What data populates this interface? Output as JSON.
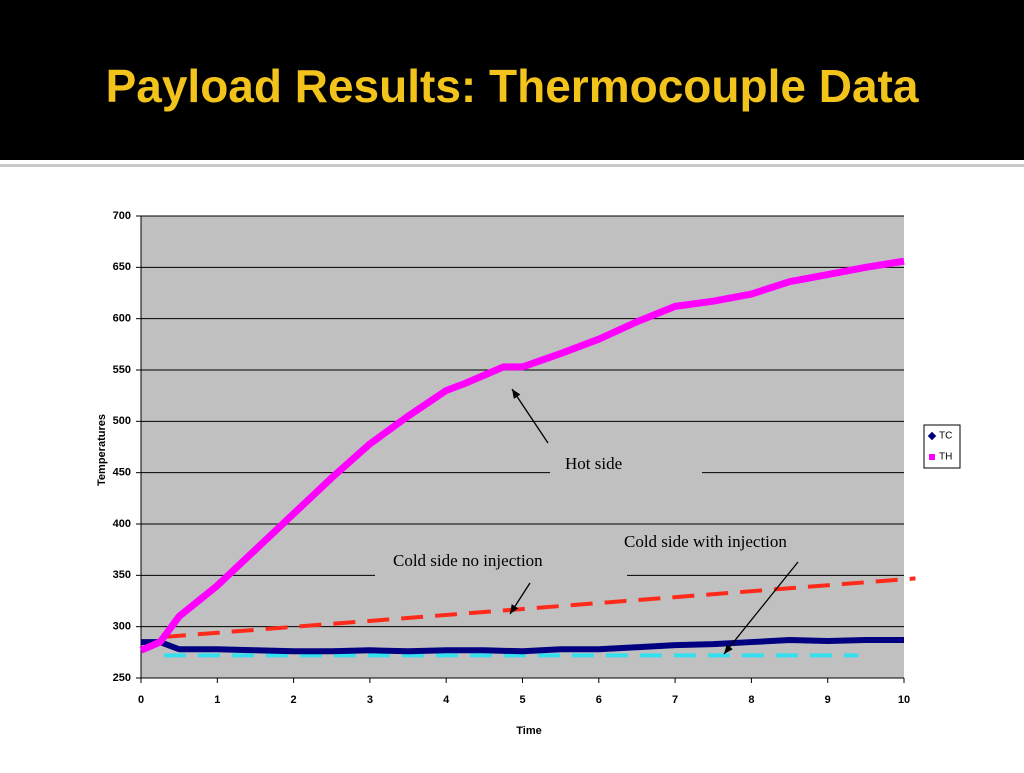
{
  "slide_title": "Payload Results: Thermocouple Data",
  "chart_data": {
    "type": "line",
    "x_label": "Time",
    "y_label": "Temperatures",
    "xlim": [
      0,
      10
    ],
    "ylim": [
      250,
      700
    ],
    "xticks": [
      0,
      1,
      2,
      3,
      4,
      5,
      6,
      7,
      8,
      9,
      10
    ],
    "yticks": [
      250,
      300,
      350,
      400,
      450,
      500,
      550,
      600,
      650,
      700
    ],
    "grid": true,
    "legend": "right",
    "series": [
      {
        "name": "TC",
        "color": "#000080",
        "x": [
          0,
          0.25,
          0.5,
          1,
          1.5,
          2,
          2.5,
          3,
          3.5,
          4,
          4.5,
          5,
          5.5,
          6,
          6.5,
          7,
          7.5,
          8,
          8.5,
          9,
          9.5,
          10
        ],
        "values": [
          285,
          285,
          278,
          278,
          277,
          276,
          276,
          277,
          276,
          277,
          277,
          276,
          278,
          278,
          280,
          282,
          283,
          285,
          287,
          286,
          287,
          287
        ]
      },
      {
        "name": "TH",
        "color": "#ff00ff",
        "x": [
          0,
          0.25,
          0.5,
          1,
          1.5,
          2,
          2.5,
          3,
          3.5,
          4,
          4.25,
          4.5,
          4.75,
          5,
          5.5,
          6,
          6.5,
          7,
          7.5,
          8,
          8.5,
          9,
          9.5,
          10
        ],
        "values": [
          277,
          285,
          310,
          340,
          375,
          410,
          445,
          478,
          505,
          530,
          537,
          545,
          553,
          553,
          566,
          580,
          597,
          612,
          617,
          624,
          636,
          643,
          650,
          656
        ]
      }
    ],
    "reference_lines": [
      {
        "color": "#ff2a1a",
        "x": [
          0.3,
          10.15
        ],
        "values": [
          290,
          347
        ]
      },
      {
        "color": "#33e0f0",
        "x": [
          0.3,
          9.4
        ],
        "values": [
          272,
          272
        ]
      }
    ],
    "annotations": [
      "Hot side",
      "Cold side no injection",
      "Cold side with injection"
    ]
  }
}
